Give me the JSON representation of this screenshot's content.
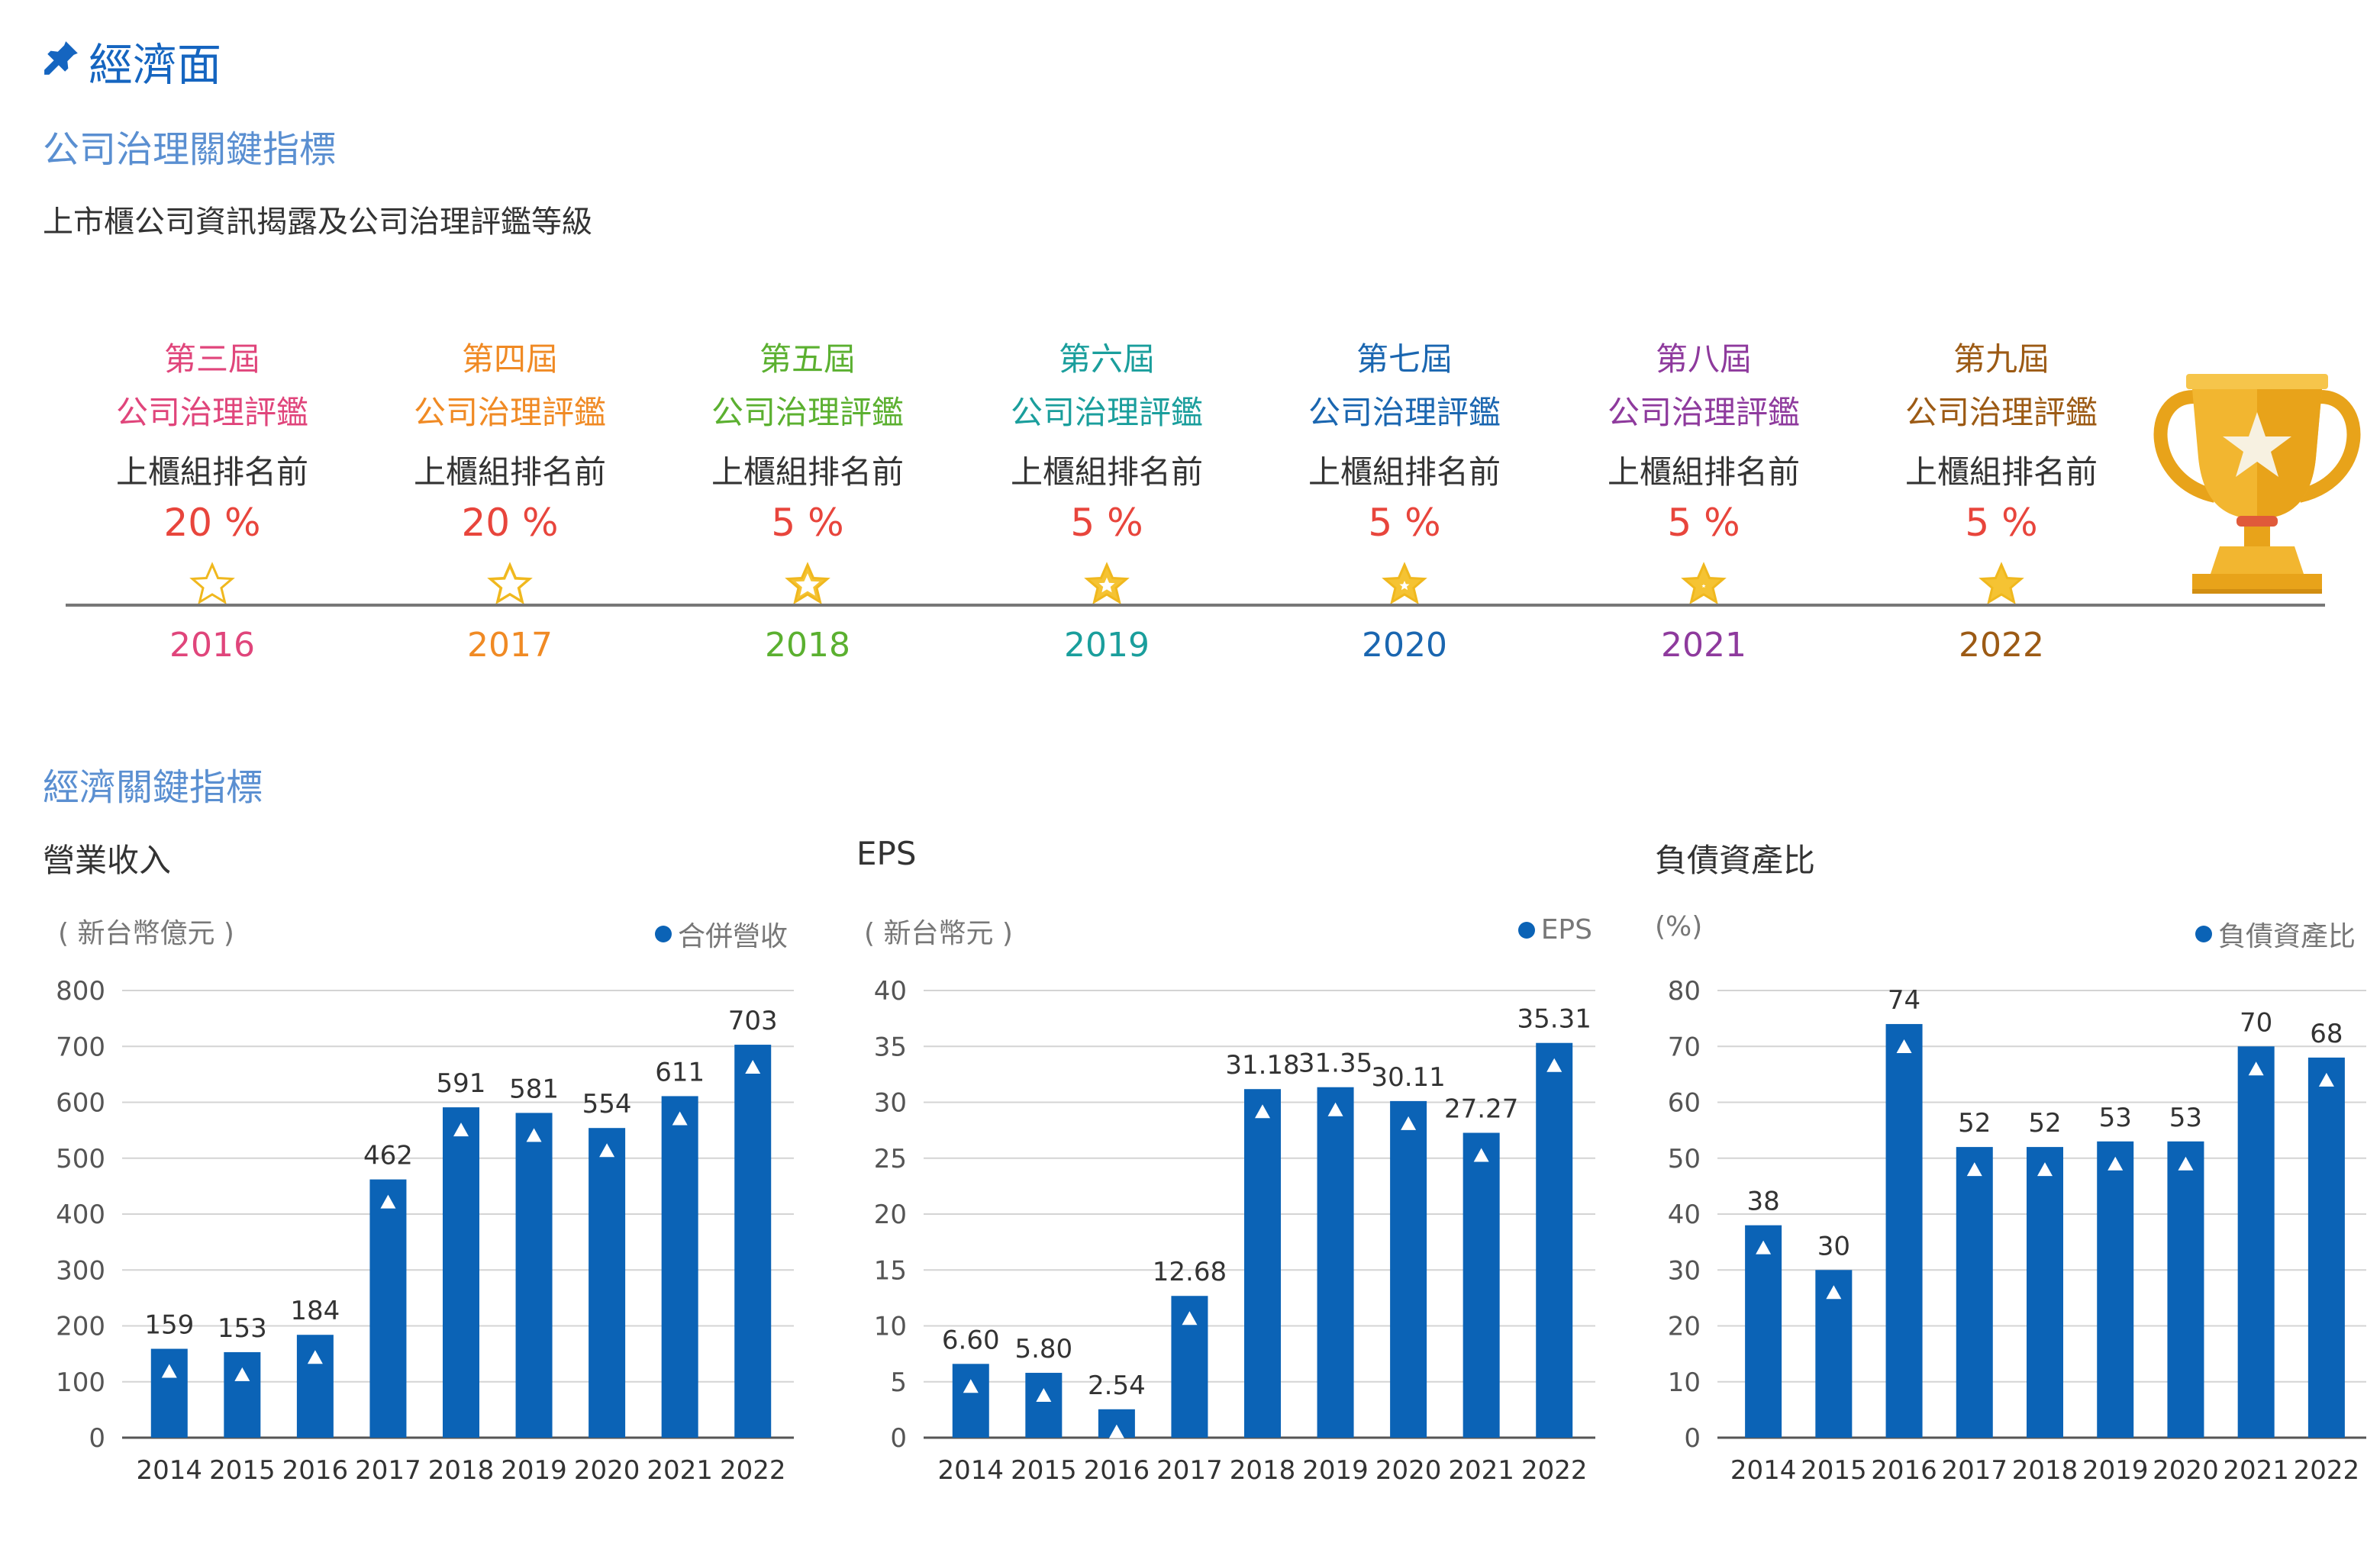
{
  "section": {
    "title": "經濟面",
    "icon": "pin-icon"
  },
  "governance": {
    "heading": "公司治理關鍵指標",
    "description": "上市櫃公司資訊揭露及公司治理評鑑等級",
    "items": [
      {
        "edition": "第三屆",
        "title": "公司治理評鑑",
        "rank_label": "上櫃組排名前",
        "percent": "20 %",
        "year": "2016",
        "color": "#e0457b",
        "stars_filled": 0
      },
      {
        "edition": "第四屆",
        "title": "公司治理評鑑",
        "rank_label": "上櫃組排名前",
        "percent": "20 %",
        "year": "2017",
        "color": "#f08a24",
        "stars_filled": 0.2
      },
      {
        "edition": "第五屆",
        "title": "公司治理評鑑",
        "rank_label": "上櫃組排名前",
        "percent": "5 %",
        "year": "2018",
        "color": "#5bb030",
        "stars_filled": 0.4
      },
      {
        "edition": "第六屆",
        "title": "公司治理評鑑",
        "rank_label": "上櫃組排名前",
        "percent": "5 %",
        "year": "2019",
        "color": "#1a9e9c",
        "stars_filled": 0.6
      },
      {
        "edition": "第七屆",
        "title": "公司治理評鑑",
        "rank_label": "上櫃組排名前",
        "percent": "5 %",
        "year": "2020",
        "color": "#1a66b0",
        "stars_filled": 0.75
      },
      {
        "edition": "第八屆",
        "title": "公司治理評鑑",
        "rank_label": "上櫃組排名前",
        "percent": "5 %",
        "year": "2021",
        "color": "#8e3a9d",
        "stars_filled": 0.9
      },
      {
        "edition": "第九屆",
        "title": "公司治理評鑑",
        "rank_label": "上櫃組排名前",
        "percent": "5 %",
        "year": "2022",
        "color": "#9c5a14",
        "stars_filled": 1
      }
    ],
    "percent_color": "#e8453c",
    "trophy_icon": "trophy-icon"
  },
  "economic": {
    "heading": "經濟關鍵指標"
  },
  "chart_data": [
    {
      "type": "bar",
      "title": "營業收入",
      "unit": "( 新台幣億元 )",
      "categories": [
        "2014",
        "2015",
        "2016",
        "2017",
        "2018",
        "2019",
        "2020",
        "2021",
        "2022"
      ],
      "series": [
        {
          "name": "合併營收",
          "values": [
            159,
            153,
            184,
            462,
            591,
            581,
            554,
            611,
            703
          ]
        }
      ],
      "labels": [
        "159",
        "153",
        "184",
        "462",
        "591",
        "581",
        "554",
        "611",
        "703"
      ],
      "yticks": [
        "0",
        "100",
        "200",
        "300",
        "400",
        "500",
        "600",
        "700",
        "800"
      ],
      "ylim": [
        0,
        800
      ],
      "grid": true,
      "legend": "top-right",
      "color": "#0b63b6"
    },
    {
      "type": "bar",
      "title": "EPS",
      "unit": "( 新台幣元 )",
      "categories": [
        "2014",
        "2015",
        "2016",
        "2017",
        "2018",
        "2019",
        "2020",
        "2021",
        "2022"
      ],
      "series": [
        {
          "name": "EPS",
          "values": [
            6.6,
            5.8,
            2.54,
            12.68,
            31.18,
            31.35,
            30.11,
            27.27,
            35.31
          ]
        }
      ],
      "labels": [
        "6.60",
        "5.80",
        "2.54",
        "12.68",
        "31.18",
        "31.35",
        "30.11",
        "27.27",
        "35.31"
      ],
      "yticks": [
        "0",
        "5",
        "10",
        "15",
        "20",
        "25",
        "30",
        "35",
        "40"
      ],
      "ylim": [
        0,
        40
      ],
      "grid": true,
      "legend": "top-right",
      "color": "#0b63b6"
    },
    {
      "type": "bar",
      "title": "負債資產比",
      "unit": "(%)",
      "categories": [
        "2014",
        "2015",
        "2016",
        "2017",
        "2018",
        "2019",
        "2020",
        "2021",
        "2022"
      ],
      "series": [
        {
          "name": "負債資產比",
          "values": [
            38,
            30,
            74,
            52,
            52,
            53,
            53,
            70,
            68
          ]
        }
      ],
      "labels": [
        "38",
        "30",
        "74",
        "52",
        "52",
        "53",
        "53",
        "70",
        "68"
      ],
      "yticks": [
        "0",
        "10",
        "20",
        "30",
        "40",
        "50",
        "60",
        "70",
        "80"
      ],
      "ylim": [
        0,
        80
      ],
      "grid": true,
      "legend": "top-right",
      "color": "#0b63b6"
    }
  ]
}
